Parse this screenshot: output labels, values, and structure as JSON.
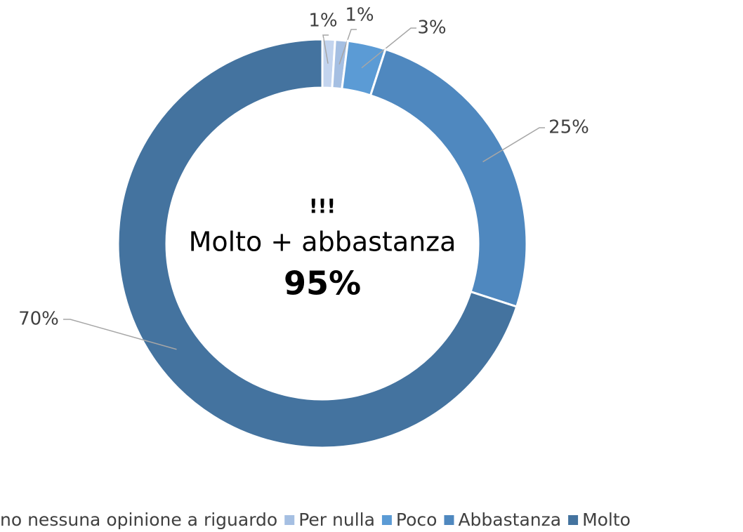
{
  "chart_data": {
    "type": "donut",
    "annotations": [
      "!!!",
      "Molto + abbastanza",
      "95%"
    ],
    "categories": [
      "no nessuna opinione a riguardo",
      "Per nulla",
      "Poco",
      "Abbastanza",
      "Molto"
    ],
    "values": [
      1,
      1,
      3,
      25,
      70
    ],
    "value_labels": [
      "1%",
      "1%",
      "3%",
      "25%",
      "70%"
    ],
    "colors": [
      "#c3d4ee",
      "#a5bfe2",
      "#5b9bd5",
      "#4f88bf",
      "#44739f"
    ],
    "legend": "bottom"
  }
}
